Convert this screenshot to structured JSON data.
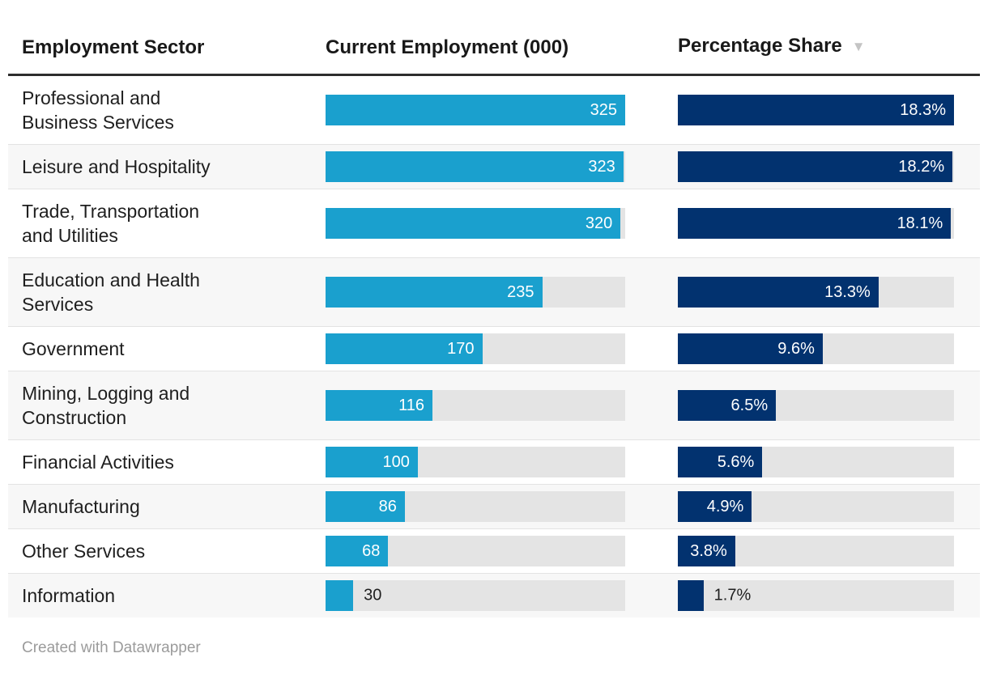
{
  "table": {
    "columns": [
      {
        "label": "Employment Sector"
      },
      {
        "label": "Current Employment (000)"
      },
      {
        "label": "Percentage Share",
        "sort_indicator": "▼",
        "sort_direction": "descending"
      }
    ],
    "rows": [
      {
        "sector": "Professional and\nBusiness Services",
        "employment": 325,
        "employment_label": "325",
        "share": 18.3,
        "share_label": "18.3%"
      },
      {
        "sector": "Leisure and Hospitality",
        "employment": 323,
        "employment_label": "323",
        "share": 18.2,
        "share_label": "18.2%"
      },
      {
        "sector": "Trade, Transportation\nand Utilities",
        "employment": 320,
        "employment_label": "320",
        "share": 18.1,
        "share_label": "18.1%"
      },
      {
        "sector": "Education and Health\nServices",
        "employment": 235,
        "employment_label": "235",
        "share": 13.3,
        "share_label": "13.3%"
      },
      {
        "sector": "Government",
        "employment": 170,
        "employment_label": "170",
        "share": 9.6,
        "share_label": "9.6%"
      },
      {
        "sector": "Mining, Logging and\nConstruction",
        "employment": 116,
        "employment_label": "116",
        "share": 6.5,
        "share_label": "6.5%"
      },
      {
        "sector": "Financial Activities",
        "employment": 100,
        "employment_label": "100",
        "share": 5.6,
        "share_label": "5.6%"
      },
      {
        "sector": "Manufacturing",
        "employment": 86,
        "employment_label": "86",
        "share": 4.9,
        "share_label": "4.9%"
      },
      {
        "sector": "Other Services",
        "employment": 68,
        "employment_label": "68",
        "share": 3.8,
        "share_label": "3.8%"
      },
      {
        "sector": "Information",
        "employment": 30,
        "employment_label": "30",
        "share": 1.7,
        "share_label": "1.7%"
      }
    ],
    "max_employment": 325,
    "max_share": 18.3
  },
  "footer": {
    "credit": "Created with Datawrapper"
  },
  "colors": {
    "employment_bar": "#1aa0ce",
    "share_bar": "#02326f",
    "bar_track": "#e4e4e4",
    "row_alt_background": "#f7f7f7",
    "header_rule": "#2d2d2d",
    "text": "#1f1f1f",
    "bar_label_inside": "#ffffff",
    "footer_text": "#9b9b9b",
    "sort_indicator": "#c4c4c4"
  },
  "chart_data": {
    "type": "table",
    "title": "",
    "categories": [
      "Professional and Business Services",
      "Leisure and Hospitality",
      "Trade, Transportation and Utilities",
      "Education and Health Services",
      "Government",
      "Mining, Logging and Construction",
      "Financial Activities",
      "Manufacturing",
      "Other Services",
      "Information"
    ],
    "series": [
      {
        "name": "Current Employment (000)",
        "values": [
          325,
          323,
          320,
          235,
          170,
          116,
          100,
          86,
          68,
          30
        ]
      },
      {
        "name": "Percentage Share",
        "values": [
          18.3,
          18.2,
          18.1,
          13.3,
          9.6,
          6.5,
          5.6,
          4.9,
          3.8,
          1.7
        ]
      }
    ],
    "layout_hints": {
      "bars_in_cells": true,
      "bar_scale_max_employment": 325,
      "bar_scale_max_share": 18.3,
      "sorted_by": "Percentage Share descending",
      "row_striping": true
    }
  }
}
